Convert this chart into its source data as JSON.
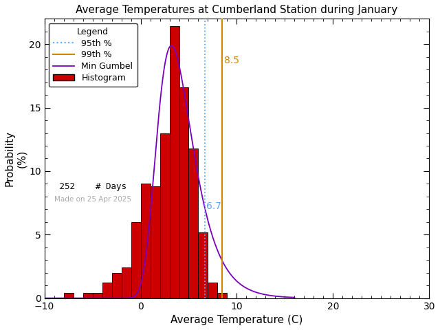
{
  "title": "Average Temperatures at Cumberland Station during January",
  "xlabel": "Average Temperature (C)",
  "ylabel": "Probability\n(%)",
  "xlim": [
    -10,
    30
  ],
  "ylim": [
    0,
    22
  ],
  "yticks": [
    0,
    5,
    10,
    15,
    20
  ],
  "xticks": [
    -10,
    0,
    10,
    20,
    30
  ],
  "bar_lefts": [
    -9,
    -8,
    -7,
    -6,
    -5,
    -4,
    -3,
    -2,
    -1,
    0,
    1,
    2,
    3,
    4,
    5,
    6,
    7,
    8,
    9,
    10
  ],
  "bar_heights": [
    0.0,
    0.4,
    0.0,
    0.4,
    0.4,
    1.2,
    2.0,
    2.4,
    6.0,
    9.0,
    8.8,
    13.0,
    21.4,
    16.6,
    11.8,
    5.2,
    1.2,
    0.4,
    0.0,
    0.0
  ],
  "bar_color": "#cc0000",
  "bar_edgecolor": "#000000",
  "gumbel_color": "#7700bb",
  "p95_value": 6.7,
  "p99_value": 8.5,
  "p95_color": "#55aaff",
  "p99_color": "#cc8800",
  "n_days": 252,
  "date_label": "Made on 25 Apr 2025",
  "date_color": "#aaaaaa",
  "legend_title": "Legend",
  "background_color": "#ffffff",
  "gumbel_mu": 3.2,
  "gumbel_beta": 1.85
}
